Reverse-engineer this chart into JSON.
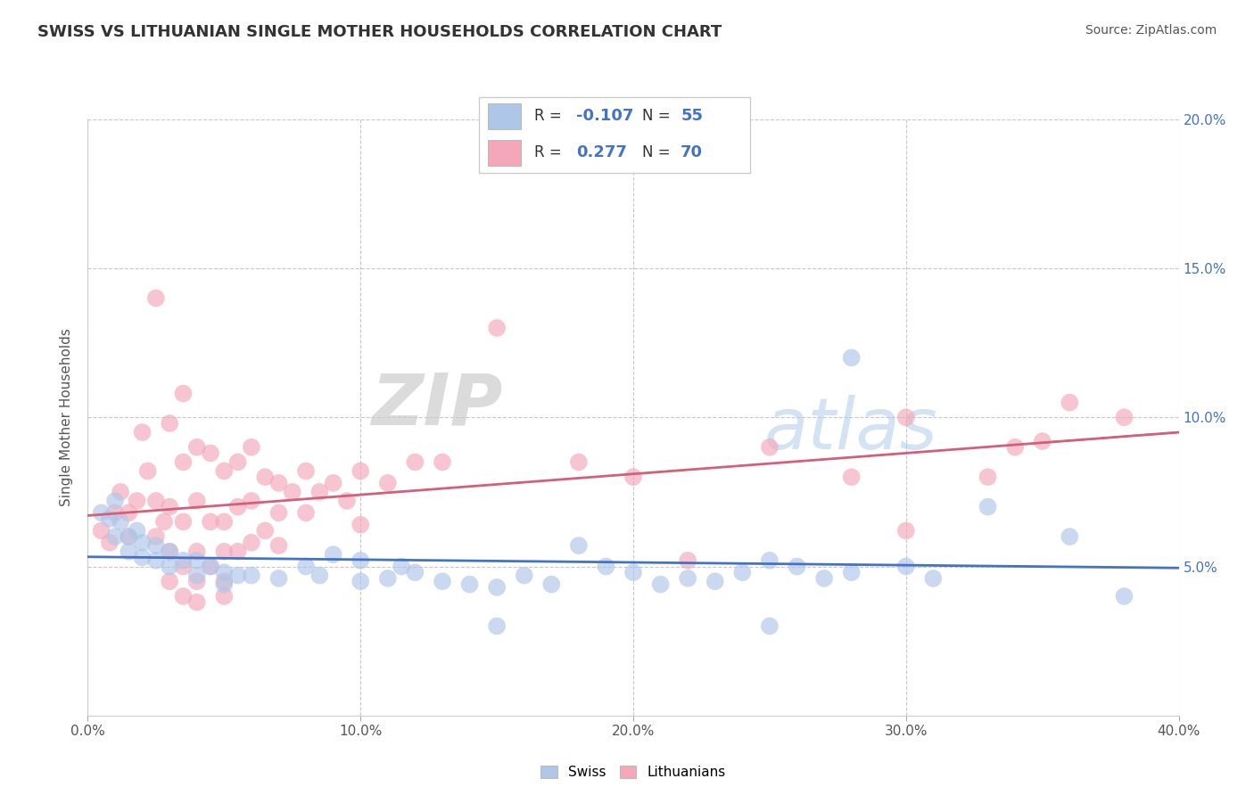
{
  "title": "SWISS VS LITHUANIAN SINGLE MOTHER HOUSEHOLDS CORRELATION CHART",
  "source": "Source: ZipAtlas.com",
  "ylabel": "Single Mother Households",
  "xlim": [
    0.0,
    0.4
  ],
  "ylim": [
    0.0,
    0.2
  ],
  "xticks": [
    0.0,
    0.1,
    0.2,
    0.3,
    0.4
  ],
  "yticks": [
    0.05,
    0.1,
    0.15,
    0.2
  ],
  "xtick_labels": [
    "0.0%",
    "10.0%",
    "20.0%",
    "30.0%",
    "40.0%"
  ],
  "ytick_labels": [
    "5.0%",
    "10.0%",
    "15.0%",
    "20.0%"
  ],
  "swiss_color": "#aec6e8",
  "lithuanian_color": "#f4a7b9",
  "swiss_line_color": "#4472c4",
  "lithuanian_line_color": "#d45f7a",
  "swiss_line_dash": "solid",
  "lithuanian_line_dash": "dashed_ext",
  "grid_color": "#c8c8c8",
  "background_color": "#ffffff",
  "swiss_R": -0.107,
  "swiss_N": 55,
  "lithuanian_R": 0.277,
  "lithuanian_N": 70,
  "legend_label_swiss": "Swiss",
  "legend_label_lithuanian": "Lithuanians",
  "watermark": "ZIPatlas",
  "title_color": "#333333",
  "value_color": "#4472c4",
  "label_color": "#333333",
  "swiss_scatter": [
    [
      0.005,
      0.068
    ],
    [
      0.008,
      0.066
    ],
    [
      0.01,
      0.072
    ],
    [
      0.01,
      0.06
    ],
    [
      0.012,
      0.065
    ],
    [
      0.015,
      0.06
    ],
    [
      0.015,
      0.055
    ],
    [
      0.018,
      0.062
    ],
    [
      0.02,
      0.058
    ],
    [
      0.02,
      0.053
    ],
    [
      0.025,
      0.057
    ],
    [
      0.025,
      0.052
    ],
    [
      0.03,
      0.055
    ],
    [
      0.03,
      0.05
    ],
    [
      0.035,
      0.052
    ],
    [
      0.04,
      0.052
    ],
    [
      0.04,
      0.047
    ],
    [
      0.045,
      0.05
    ],
    [
      0.05,
      0.048
    ],
    [
      0.05,
      0.044
    ],
    [
      0.055,
      0.047
    ],
    [
      0.06,
      0.047
    ],
    [
      0.07,
      0.046
    ],
    [
      0.08,
      0.05
    ],
    [
      0.085,
      0.047
    ],
    [
      0.09,
      0.054
    ],
    [
      0.1,
      0.052
    ],
    [
      0.1,
      0.045
    ],
    [
      0.11,
      0.046
    ],
    [
      0.115,
      0.05
    ],
    [
      0.12,
      0.048
    ],
    [
      0.13,
      0.045
    ],
    [
      0.14,
      0.044
    ],
    [
      0.15,
      0.043
    ],
    [
      0.15,
      0.03
    ],
    [
      0.16,
      0.047
    ],
    [
      0.17,
      0.044
    ],
    [
      0.18,
      0.057
    ],
    [
      0.19,
      0.05
    ],
    [
      0.2,
      0.048
    ],
    [
      0.21,
      0.044
    ],
    [
      0.22,
      0.046
    ],
    [
      0.23,
      0.045
    ],
    [
      0.24,
      0.048
    ],
    [
      0.25,
      0.052
    ],
    [
      0.25,
      0.03
    ],
    [
      0.26,
      0.05
    ],
    [
      0.27,
      0.046
    ],
    [
      0.28,
      0.048
    ],
    [
      0.28,
      0.12
    ],
    [
      0.3,
      0.05
    ],
    [
      0.31,
      0.046
    ],
    [
      0.33,
      0.07
    ],
    [
      0.36,
      0.06
    ],
    [
      0.38,
      0.04
    ]
  ],
  "lithuanian_scatter": [
    [
      0.005,
      0.062
    ],
    [
      0.008,
      0.058
    ],
    [
      0.01,
      0.068
    ],
    [
      0.012,
      0.075
    ],
    [
      0.015,
      0.06
    ],
    [
      0.015,
      0.068
    ],
    [
      0.018,
      0.072
    ],
    [
      0.02,
      0.095
    ],
    [
      0.022,
      0.082
    ],
    [
      0.025,
      0.14
    ],
    [
      0.025,
      0.072
    ],
    [
      0.025,
      0.06
    ],
    [
      0.028,
      0.065
    ],
    [
      0.03,
      0.098
    ],
    [
      0.03,
      0.07
    ],
    [
      0.03,
      0.055
    ],
    [
      0.03,
      0.045
    ],
    [
      0.035,
      0.108
    ],
    [
      0.035,
      0.085
    ],
    [
      0.035,
      0.065
    ],
    [
      0.035,
      0.05
    ],
    [
      0.035,
      0.04
    ],
    [
      0.04,
      0.09
    ],
    [
      0.04,
      0.072
    ],
    [
      0.04,
      0.055
    ],
    [
      0.04,
      0.045
    ],
    [
      0.04,
      0.038
    ],
    [
      0.045,
      0.088
    ],
    [
      0.045,
      0.065
    ],
    [
      0.045,
      0.05
    ],
    [
      0.05,
      0.082
    ],
    [
      0.05,
      0.065
    ],
    [
      0.05,
      0.055
    ],
    [
      0.05,
      0.045
    ],
    [
      0.05,
      0.04
    ],
    [
      0.055,
      0.085
    ],
    [
      0.055,
      0.07
    ],
    [
      0.055,
      0.055
    ],
    [
      0.06,
      0.09
    ],
    [
      0.06,
      0.072
    ],
    [
      0.06,
      0.058
    ],
    [
      0.065,
      0.08
    ],
    [
      0.065,
      0.062
    ],
    [
      0.07,
      0.078
    ],
    [
      0.07,
      0.068
    ],
    [
      0.07,
      0.057
    ],
    [
      0.075,
      0.075
    ],
    [
      0.08,
      0.082
    ],
    [
      0.08,
      0.068
    ],
    [
      0.085,
      0.075
    ],
    [
      0.09,
      0.078
    ],
    [
      0.095,
      0.072
    ],
    [
      0.1,
      0.082
    ],
    [
      0.1,
      0.064
    ],
    [
      0.11,
      0.078
    ],
    [
      0.12,
      0.085
    ],
    [
      0.13,
      0.085
    ],
    [
      0.15,
      0.13
    ],
    [
      0.18,
      0.085
    ],
    [
      0.2,
      0.08
    ],
    [
      0.22,
      0.052
    ],
    [
      0.25,
      0.09
    ],
    [
      0.28,
      0.08
    ],
    [
      0.3,
      0.062
    ],
    [
      0.3,
      0.1
    ],
    [
      0.33,
      0.08
    ],
    [
      0.34,
      0.09
    ],
    [
      0.35,
      0.092
    ],
    [
      0.36,
      0.105
    ],
    [
      0.38,
      0.1
    ]
  ]
}
